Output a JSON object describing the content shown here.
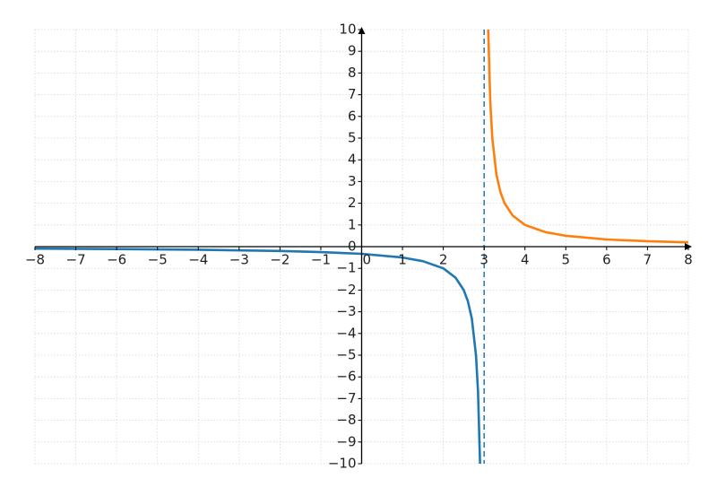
{
  "chart_data": {
    "type": "line",
    "xlim": [
      -8,
      8
    ],
    "ylim": [
      -10,
      10
    ],
    "xticks": [
      {
        "value": -8,
        "label": "−8"
      },
      {
        "value": -7,
        "label": "−7"
      },
      {
        "value": -6,
        "label": "−6"
      },
      {
        "value": -5,
        "label": "−5"
      },
      {
        "value": -4,
        "label": "−4"
      },
      {
        "value": -3,
        "label": "−3"
      },
      {
        "value": -2,
        "label": "−2"
      },
      {
        "value": -1,
        "label": "−1"
      },
      0,
      1,
      2,
      3,
      4,
      5,
      6,
      7,
      8
    ],
    "yticks": [
      {
        "value": -10,
        "label": "−10"
      },
      {
        "value": -9,
        "label": "−9"
      },
      {
        "value": -8,
        "label": "−8"
      },
      {
        "value": -7,
        "label": "−7"
      },
      {
        "value": -6,
        "label": "−6"
      },
      {
        "value": -5,
        "label": "−5"
      },
      {
        "value": -4,
        "label": "−4"
      },
      {
        "value": -3,
        "label": "−3"
      },
      {
        "value": -2,
        "label": "−2"
      },
      {
        "value": -1,
        "label": "−1"
      },
      0,
      1,
      2,
      3,
      4,
      5,
      6,
      7,
      8,
      9,
      10
    ],
    "grid": true,
    "vlines": [
      {
        "x": 3,
        "color": "#1f77b4",
        "style": "dashed"
      }
    ],
    "series": [
      {
        "color": "#1f77b4",
        "x": [
          -8,
          -6,
          -4,
          -2,
          -1,
          0,
          1,
          1.5,
          2,
          2.3,
          2.5,
          2.6,
          2.7,
          2.8,
          2.85,
          2.9
        ],
        "values": [
          -0.09,
          -0.11,
          -0.14,
          -0.2,
          -0.25,
          -0.33,
          -0.5,
          -0.67,
          -1,
          -1.43,
          -2,
          -2.5,
          -3.33,
          -5,
          -6.67,
          -10
        ]
      },
      {
        "color": "#ff7f0e",
        "x": [
          3.1,
          3.15,
          3.2,
          3.3,
          3.4,
          3.5,
          3.7,
          4,
          4.5,
          5,
          6,
          7,
          8
        ],
        "values": [
          10,
          6.67,
          5,
          3.33,
          2.5,
          2,
          1.43,
          1,
          0.67,
          0.5,
          0.33,
          0.25,
          0.2
        ]
      }
    ]
  }
}
